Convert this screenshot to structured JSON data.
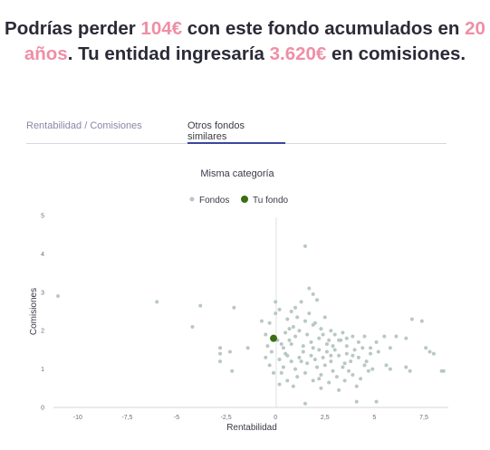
{
  "headline": {
    "part1": "Podrías perder ",
    "lost_amount": "104€",
    "part2": " con este fondo acumulados en ",
    "years": "20 años",
    "part3": ". Tu entidad ingresaría ",
    "fees_amount": "3.620€",
    "part4": " en comisiones."
  },
  "tabs": [
    {
      "label": "Rentabilidad / Comisiones",
      "active": false
    },
    {
      "label": "Otros fondos similares",
      "active": true
    }
  ],
  "colors": {
    "accent": "#ee8fa6",
    "tab_active": "#3c45a1",
    "funds_point": "#b8c8c4",
    "your_fund_point": "#3b6e12"
  },
  "chart_data": {
    "type": "scatter",
    "title": "Misma categoría",
    "xlabel": "Rentabilidad",
    "ylabel": "Comisiones",
    "xlim": [
      -11,
      8.6
    ],
    "ylim": [
      0,
      5
    ],
    "xticks": [
      {
        "value": -10,
        "label": "-10"
      },
      {
        "value": -7.5,
        "label": "-7,5"
      },
      {
        "value": -5,
        "label": "-5"
      },
      {
        "value": -2.5,
        "label": "-2,5"
      },
      {
        "value": 0,
        "label": "0"
      },
      {
        "value": 2.5,
        "label": "2,5"
      },
      {
        "value": 5,
        "label": "5"
      },
      {
        "value": 7.5,
        "label": "7,5"
      }
    ],
    "yticks": [
      {
        "value": 0,
        "label": "0"
      },
      {
        "value": 1,
        "label": "1"
      },
      {
        "value": 2,
        "label": "2"
      },
      {
        "value": 3,
        "label": "3"
      },
      {
        "value": 4,
        "label": "4"
      },
      {
        "value": 5,
        "label": "5"
      }
    ],
    "legend_position": "top-center",
    "series": [
      {
        "name": "Fondos",
        "color": "#b8c8c4",
        "points": [
          [
            -11.0,
            2.9
          ],
          [
            -6.0,
            2.75
          ],
          [
            -3.8,
            2.65
          ],
          [
            -4.2,
            2.1
          ],
          [
            -2.1,
            2.6
          ],
          [
            -2.8,
            1.55
          ],
          [
            -2.8,
            1.4
          ],
          [
            -2.8,
            1.2
          ],
          [
            -2.3,
            1.45
          ],
          [
            -2.2,
            0.95
          ],
          [
            -1.4,
            1.55
          ],
          [
            0.0,
            2.75
          ],
          [
            0.2,
            2.55
          ],
          [
            -0.7,
            2.25
          ],
          [
            -0.3,
            2.2
          ],
          [
            0.6,
            2.3
          ],
          [
            0.8,
            2.5
          ],
          [
            0.9,
            2.1
          ],
          [
            1.0,
            2.6
          ],
          [
            1.3,
            2.75
          ],
          [
            1.5,
            2.25
          ],
          [
            1.5,
            4.2
          ],
          [
            1.7,
            3.1
          ],
          [
            1.9,
            2.95
          ],
          [
            2.1,
            2.8
          ],
          [
            2.0,
            2.2
          ],
          [
            2.5,
            2.35
          ],
          [
            2.8,
            2.0
          ],
          [
            1.2,
            2.0
          ],
          [
            0.5,
            1.95
          ],
          [
            -0.5,
            1.9
          ],
          [
            -0.4,
            1.6
          ],
          [
            0.1,
            1.75
          ],
          [
            0.4,
            1.55
          ],
          [
            0.7,
            1.75
          ],
          [
            1.0,
            1.85
          ],
          [
            1.4,
            1.6
          ],
          [
            1.8,
            1.7
          ],
          [
            2.2,
            1.8
          ],
          [
            2.6,
            1.65
          ],
          [
            3.0,
            1.9
          ],
          [
            3.3,
            1.75
          ],
          [
            3.6,
            1.6
          ],
          [
            3.9,
            1.85
          ],
          [
            4.2,
            1.7
          ],
          [
            4.5,
            1.85
          ],
          [
            4.8,
            1.55
          ],
          [
            5.2,
            1.45
          ],
          [
            -0.5,
            1.3
          ],
          [
            -0.3,
            1.1
          ],
          [
            -0.1,
            0.9
          ],
          [
            0.2,
            1.25
          ],
          [
            0.4,
            1.05
          ],
          [
            0.6,
            1.35
          ],
          [
            0.8,
            1.2
          ],
          [
            1.0,
            1.0
          ],
          [
            1.2,
            1.3
          ],
          [
            1.4,
            1.45
          ],
          [
            1.6,
            1.15
          ],
          [
            1.8,
            1.35
          ],
          [
            2.0,
            1.25
          ],
          [
            2.2,
            1.5
          ],
          [
            2.4,
            1.3
          ],
          [
            2.6,
            1.45
          ],
          [
            2.8,
            1.2
          ],
          [
            3.0,
            1.5
          ],
          [
            3.2,
            1.35
          ],
          [
            3.4,
            1.05
          ],
          [
            3.6,
            1.4
          ],
          [
            3.8,
            1.2
          ],
          [
            4.0,
            1.5
          ],
          [
            4.2,
            1.3
          ],
          [
            4.4,
            1.55
          ],
          [
            4.6,
            1.2
          ],
          [
            4.8,
            1.4
          ],
          [
            5.1,
            1.7
          ],
          [
            5.6,
            1.1
          ],
          [
            5.8,
            1.55
          ],
          [
            6.1,
            1.85
          ],
          [
            6.6,
            1.8
          ],
          [
            6.9,
            2.3
          ],
          [
            7.4,
            2.25
          ],
          [
            7.8,
            1.45
          ],
          [
            7.6,
            1.55
          ],
          [
            8.0,
            1.4
          ],
          [
            8.4,
            0.95
          ],
          [
            8.5,
            0.95
          ],
          [
            6.8,
            0.95
          ],
          [
            6.6,
            1.05
          ],
          [
            5.8,
            1.0
          ],
          [
            0.3,
            0.9
          ],
          [
            0.6,
            0.7
          ],
          [
            1.1,
            0.8
          ],
          [
            1.5,
            0.9
          ],
          [
            1.9,
            0.7
          ],
          [
            2.3,
            0.85
          ],
          [
            2.7,
            0.65
          ],
          [
            3.1,
            0.8
          ],
          [
            3.5,
            0.7
          ],
          [
            3.9,
            0.85
          ],
          [
            4.3,
            0.75
          ],
          [
            2.3,
            0.5
          ],
          [
            3.2,
            0.45
          ],
          [
            4.1,
            0.55
          ],
          [
            0.9,
            0.55
          ],
          [
            0.2,
            0.6
          ],
          [
            2.2,
            0.75
          ],
          [
            1.5,
            0.1
          ],
          [
            4.1,
            0.15
          ],
          [
            5.1,
            0.15
          ],
          [
            0.8,
            1.65
          ],
          [
            1.6,
            1.9
          ],
          [
            2.4,
            1.9
          ],
          [
            3.4,
            1.95
          ],
          [
            1.9,
            1.55
          ],
          [
            2.9,
            1.6
          ],
          [
            3.5,
            1.15
          ],
          [
            4.7,
            0.95
          ],
          [
            0.5,
            1.4
          ],
          [
            1.3,
            1.2
          ],
          [
            2.1,
            1.05
          ],
          [
            2.5,
            1.1
          ],
          [
            2.9,
            0.95
          ],
          [
            3.7,
            0.95
          ],
          [
            4.9,
            1.0
          ],
          [
            -0.2,
            1.45
          ],
          [
            5.5,
            1.85
          ],
          [
            0.0,
            2.45
          ],
          [
            1.1,
            2.35
          ],
          [
            2.3,
            2.05
          ],
          [
            1.7,
            2.45
          ],
          [
            3.2,
            1.75
          ],
          [
            3.9,
            1.35
          ],
          [
            4.5,
            1.1
          ],
          [
            2.7,
            1.75
          ],
          [
            0.3,
            1.65
          ],
          [
            1.9,
            2.15
          ],
          [
            0.7,
            2.05
          ],
          [
            2.8,
            1.35
          ],
          [
            3.6,
            1.8
          ]
        ]
      },
      {
        "name": "Tu fondo",
        "color": "#3b6e12",
        "points": [
          [
            -0.1,
            1.8
          ]
        ]
      }
    ]
  }
}
